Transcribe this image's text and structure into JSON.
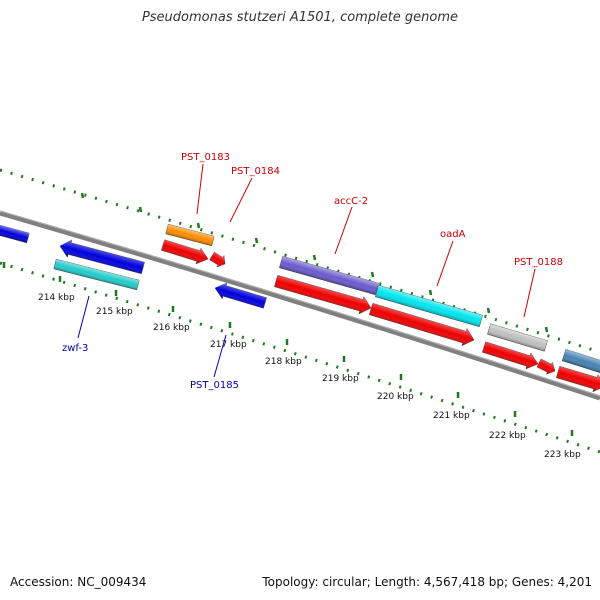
{
  "title": "Pseudomonas stutzeri A1501, complete genome",
  "footer": {
    "accession": "Accession: NC_009434",
    "summary": "Topology: circular; Length: 4,567,418 bp; Genes: 4,201"
  },
  "colors": {
    "backbone": "#808080",
    "ticks": "#1f7a1f",
    "label_red": "#cc0000",
    "label_blue": "#0000aa"
  },
  "kbp_labels": [
    "214 kbp",
    "215 kbp",
    "216 kbp",
    "217 kbp",
    "218 kbp",
    "219 kbp",
    "220 kbp",
    "221 kbp",
    "222 kbp",
    "223 kbp"
  ],
  "gene_labels": [
    {
      "text": "PST_0183",
      "color": "label_red"
    },
    {
      "text": "PST_0184",
      "color": "label_red"
    },
    {
      "text": "accC-2",
      "color": "label_red"
    },
    {
      "text": "oadA",
      "color": "label_red"
    },
    {
      "text": "PST_0188",
      "color": "label_red"
    },
    {
      "text": "zwf-3",
      "color": "label_blue"
    },
    {
      "text": "PST_0185",
      "color": "label_blue"
    }
  ],
  "features": [
    {
      "name": "blue-left-edge",
      "color": "#0000dd",
      "strand": "plus"
    },
    {
      "name": "zwf-3-gene",
      "color": "#0000dd",
      "strand": "reverse"
    },
    {
      "name": "zwf-3-cds",
      "color": "#22cccc",
      "strand": "flat"
    },
    {
      "name": "pst0183-gene",
      "color": "#ff8c00",
      "strand": "flat"
    },
    {
      "name": "pst0183-cds",
      "color": "#ee0000",
      "strand": "forward"
    },
    {
      "name": "pst0184-cds",
      "color": "#ee0000",
      "strand": "forward"
    },
    {
      "name": "pst0185-gene",
      "color": "#0000dd",
      "strand": "reverse"
    },
    {
      "name": "accC-2-gene",
      "color": "#6a5acd",
      "strand": "flat"
    },
    {
      "name": "accC-2-cds",
      "color": "#ee0000",
      "strand": "forward"
    },
    {
      "name": "oadA-gene",
      "color": "#00e5ee",
      "strand": "flat"
    },
    {
      "name": "oadA-cds",
      "color": "#ee0000",
      "strand": "forward"
    },
    {
      "name": "pst0188-gene",
      "color": "#c0c0c0",
      "strand": "flat"
    },
    {
      "name": "pst0188-cds",
      "color": "#ee0000",
      "strand": "forward"
    },
    {
      "name": "small-red-cds",
      "color": "#ee0000",
      "strand": "forward"
    },
    {
      "name": "steelblue-gene",
      "color": "#4682b4",
      "strand": "flat"
    },
    {
      "name": "right-red-cds",
      "color": "#ee0000",
      "strand": "forward"
    }
  ]
}
